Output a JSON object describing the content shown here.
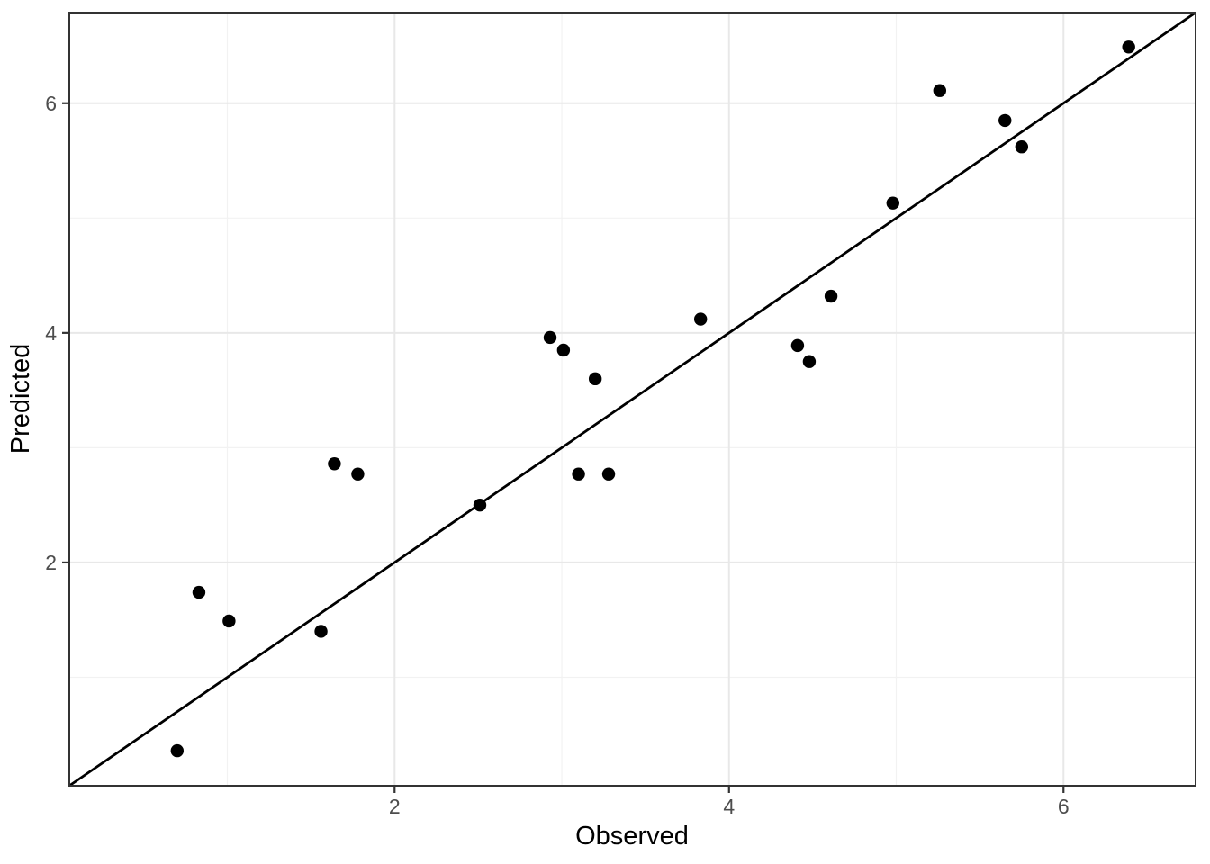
{
  "chart_data": {
    "type": "scatter",
    "title": "",
    "xlabel": "Observed",
    "ylabel": "Predicted",
    "axis": {
      "xlim": [
        0.055,
        6.79
      ],
      "ylim": [
        0.055,
        6.79
      ],
      "x_major_ticks": [
        2,
        4,
        6
      ],
      "y_major_ticks": [
        2,
        4,
        6
      ],
      "x_tick_labels": [
        "2",
        "4",
        "6"
      ],
      "y_tick_labels": [
        "2",
        "4",
        "6"
      ],
      "x_minor_ticks": [
        1,
        3,
        5
      ],
      "y_minor_ticks": [
        1,
        3,
        5
      ]
    },
    "grid": {
      "major": true,
      "minor": true
    },
    "legend": "none",
    "reference_line": {
      "type": "identity",
      "slope": 1,
      "intercept": 0
    },
    "points": [
      {
        "observed": 0.7,
        "predicted": 0.36
      },
      {
        "observed": 0.83,
        "predicted": 1.74
      },
      {
        "observed": 1.01,
        "predicted": 1.49
      },
      {
        "observed": 1.56,
        "predicted": 1.4
      },
      {
        "observed": 1.64,
        "predicted": 2.86
      },
      {
        "observed": 1.78,
        "predicted": 2.77
      },
      {
        "observed": 2.51,
        "predicted": 2.5
      },
      {
        "observed": 2.93,
        "predicted": 3.96
      },
      {
        "observed": 3.01,
        "predicted": 3.85
      },
      {
        "observed": 3.1,
        "predicted": 2.77
      },
      {
        "observed": 3.2,
        "predicted": 3.6
      },
      {
        "observed": 3.28,
        "predicted": 2.77
      },
      {
        "observed": 3.83,
        "predicted": 4.12
      },
      {
        "observed": 4.41,
        "predicted": 3.89
      },
      {
        "observed": 4.48,
        "predicted": 3.75
      },
      {
        "observed": 4.61,
        "predicted": 4.32
      },
      {
        "observed": 4.98,
        "predicted": 5.13
      },
      {
        "observed": 5.26,
        "predicted": 6.11
      },
      {
        "observed": 5.65,
        "predicted": 5.85
      },
      {
        "observed": 5.75,
        "predicted": 5.62
      },
      {
        "observed": 6.39,
        "predicted": 6.49
      }
    ]
  },
  "colors": {
    "background": "#FFFFFF",
    "panel_background": "#FFFFFF",
    "panel_border": "#333333",
    "grid_major": "#E8E8E8",
    "grid_minor": "#F2F2F2",
    "point": "#000000",
    "reference_line": "#000000",
    "tick_mark": "#333333",
    "tick_label": "#4D4D4D",
    "axis_title": "#000000"
  }
}
